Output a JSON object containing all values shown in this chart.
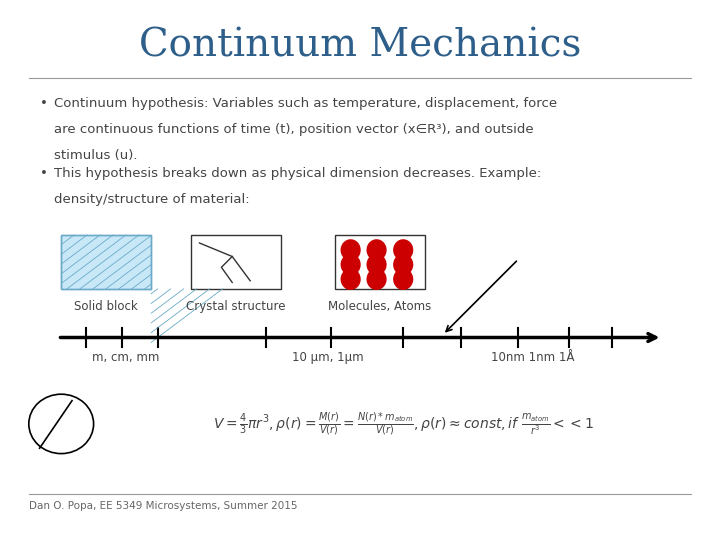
{
  "title": "Continuum Mechanics",
  "title_color": "#2E5F8A",
  "title_fontsize": 28,
  "bg_color": "#FFFFFF",
  "sep_color": "#999999",
  "bullet1_line1": "Continuum hypothesis: Variables such as temperature, displacement, force",
  "bullet1_line2": "are continuous functions of time (t), position vector (x∈R³), and outside",
  "bullet1_line3": "stimulus (u).",
  "bullet2_line1": "This hypothesis breaks down as physical dimension decreases. Example:",
  "bullet2_line2": "density/structure of material:",
  "label_solid": "Solid block",
  "label_crystal": "Crystal structure",
  "label_molecules": "Molecules, Atoms",
  "scale_label1": "m, cm, mm",
  "scale_label2": "10 μm, 1μm",
  "scale_label3": "10nm 1nm 1Å",
  "footer": "Dan O. Popa, EE 5349 Microsystems, Summer 2015",
  "red_dot_color": "#CC0000",
  "text_color": "#444444",
  "bullet_fontsize": 9.5,
  "small_fontsize": 8.5,
  "footer_fontsize": 7.5,
  "formula_fontsize": 10
}
